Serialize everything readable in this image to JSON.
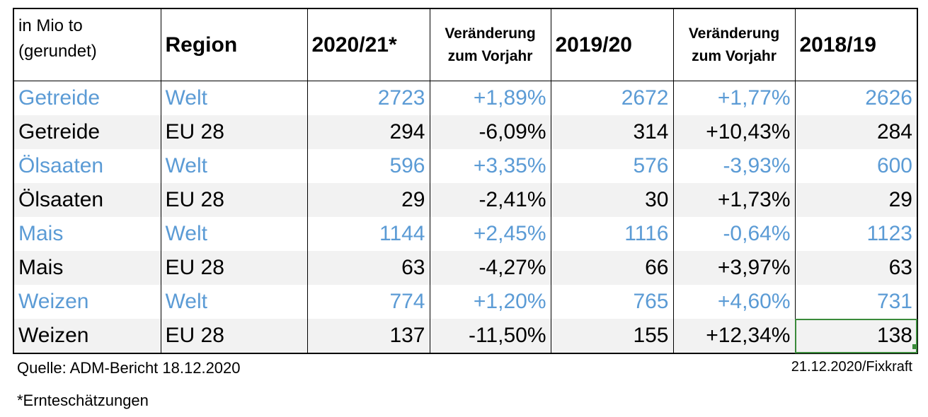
{
  "chart_data": {
    "type": "table",
    "header": {
      "unit_line1": "in Mio to",
      "unit_line2": "(gerundet)",
      "region": "Region",
      "year1": "2020/21*",
      "change1_line1": "Veränderung",
      "change1_line2": "zum Vorjahr",
      "year2": "2019/20",
      "change2_line1": "Veränderung",
      "change2_line2": "zum Vorjahr",
      "year3": "2018/19"
    },
    "rows": [
      {
        "crop": "Getreide",
        "region": "Welt",
        "v2021": "2723",
        "chg2021": "+1,89%",
        "v2020": "2672",
        "chg2020": "+1,77%",
        "v2019": "2626"
      },
      {
        "crop": "Getreide",
        "region": "EU 28",
        "v2021": "294",
        "chg2021": "-6,09%",
        "v2020": "314",
        "chg2020": "+10,43%",
        "v2019": "284"
      },
      {
        "crop": "Ölsaaten",
        "region": "Welt",
        "v2021": "596",
        "chg2021": "+3,35%",
        "v2020": "576",
        "chg2020": "-3,93%",
        "v2019": "600"
      },
      {
        "crop": "Ölsaaten",
        "region": "EU 28",
        "v2021": "29",
        "chg2021": "-2,41%",
        "v2020": "30",
        "chg2020": "+1,73%",
        "v2019": "29"
      },
      {
        "crop": "Mais",
        "region": "Welt",
        "v2021": "1144",
        "chg2021": "+2,45%",
        "v2020": "1116",
        "chg2020": "-0,64%",
        "v2019": "1123"
      },
      {
        "crop": "Mais",
        "region": "EU 28",
        "v2021": "63",
        "chg2021": "-4,27%",
        "v2020": "66",
        "chg2020": "+3,97%",
        "v2019": "63"
      },
      {
        "crop": "Weizen",
        "region": "Welt",
        "v2021": "774",
        "chg2021": "+1,20%",
        "v2020": "765",
        "chg2020": "+4,60%",
        "v2019": "731"
      },
      {
        "crop": "Weizen",
        "region": "EU 28",
        "v2021": "137",
        "chg2021": "-11,50%",
        "v2020": "155",
        "chg2020": "+12,34%",
        "v2019": "138"
      }
    ],
    "colors": {
      "welt_text": "#5b9bd5",
      "eu_text": "#000000",
      "stripe": "#f2f2f2"
    }
  },
  "footer": {
    "source": "Quelle: ADM-Bericht 18.12.2020",
    "stamp": "21.12.2020/Fixkraft",
    "footnote": "*Ernteschätzungen"
  }
}
